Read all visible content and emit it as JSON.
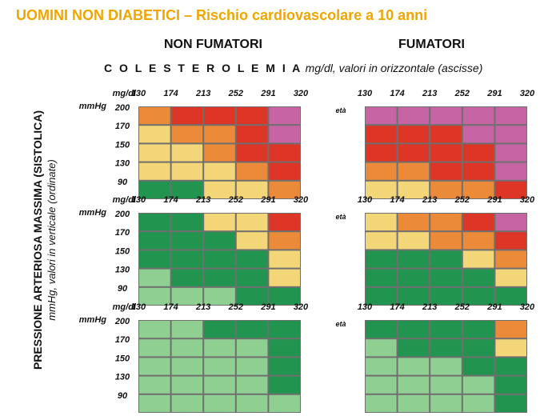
{
  "header": {
    "title": "UOMINI NON DIABETICI – Rischio cardiovascolare a 10 anni",
    "non_smokers": "NON FUMATORI",
    "smokers": "FUMATORI",
    "subtitle_bold": "C O L E S T E R O L E M I A",
    "subtitle_italic": " mg/dl, valori in orizzontale (ascisse)"
  },
  "yaxis": {
    "title": "PRESSIONE ARTERIOSA MASSIMA (SISTOLICA)",
    "subtitle": "mmHg, valori in verticale (ordinate)"
  },
  "colors": {
    "level1": "#8fcf92",
    "level2": "#21954f",
    "level3": "#f3d678",
    "level4": "#eb8a38",
    "level5": "#de3626",
    "level6": "#c765a4"
  },
  "chart_data": {
    "type": "heatmap",
    "x_unit": "mg/dl",
    "y_unit": "mmHg",
    "x_ticks": [
      "130",
      "174",
      "213",
      "252",
      "291",
      "320"
    ],
    "y_ticks": [
      "200",
      "170",
      "150",
      "130",
      "90"
    ],
    "age_label": "età",
    "columns": [
      "NON FUMATORI",
      "FUMATORI"
    ],
    "rows_note": "cell values are risk levels 1-6 (colors.levelN), rows top to bottom = 200,170,150,130,90 mmHg bands, columns = cholesterol bands",
    "panels": [
      {
        "column": "NON FUMATORI",
        "row": 0,
        "grid": [
          [
            4,
            5,
            5,
            5,
            6
          ],
          [
            3,
            4,
            4,
            5,
            6
          ],
          [
            3,
            3,
            4,
            5,
            5
          ],
          [
            3,
            3,
            3,
            4,
            5
          ],
          [
            2,
            2,
            3,
            3,
            4
          ]
        ]
      },
      {
        "column": "FUMATORI",
        "row": 0,
        "grid": [
          [
            6,
            6,
            6,
            6,
            6
          ],
          [
            5,
            5,
            5,
            6,
            6
          ],
          [
            5,
            5,
            5,
            5,
            6
          ],
          [
            4,
            4,
            5,
            5,
            6
          ],
          [
            3,
            3,
            4,
            4,
            5
          ]
        ]
      },
      {
        "column": "NON FUMATORI",
        "row": 1,
        "grid": [
          [
            2,
            2,
            3,
            3,
            5
          ],
          [
            2,
            2,
            2,
            3,
            4
          ],
          [
            2,
            2,
            2,
            2,
            3
          ],
          [
            1,
            2,
            2,
            2,
            3
          ],
          [
            1,
            1,
            1,
            2,
            2
          ]
        ]
      },
      {
        "column": "FUMATORI",
        "row": 1,
        "grid": [
          [
            3,
            4,
            4,
            5,
            6
          ],
          [
            3,
            3,
            4,
            4,
            5
          ],
          [
            2,
            2,
            2,
            3,
            4
          ],
          [
            2,
            2,
            2,
            2,
            3
          ],
          [
            2,
            2,
            2,
            2,
            2
          ]
        ]
      },
      {
        "column": "NON FUMATORI",
        "row": 2,
        "grid": [
          [
            1,
            1,
            2,
            2,
            2
          ],
          [
            1,
            1,
            1,
            1,
            2
          ],
          [
            1,
            1,
            1,
            1,
            2
          ],
          [
            1,
            1,
            1,
            1,
            2
          ],
          [
            1,
            1,
            1,
            1,
            1
          ]
        ]
      },
      {
        "column": "FUMATORI",
        "row": 2,
        "grid": [
          [
            2,
            2,
            2,
            2,
            4
          ],
          [
            1,
            2,
            2,
            2,
            3
          ],
          [
            1,
            1,
            1,
            2,
            2
          ],
          [
            1,
            1,
            1,
            1,
            2
          ],
          [
            1,
            1,
            1,
            1,
            2
          ]
        ]
      }
    ]
  }
}
